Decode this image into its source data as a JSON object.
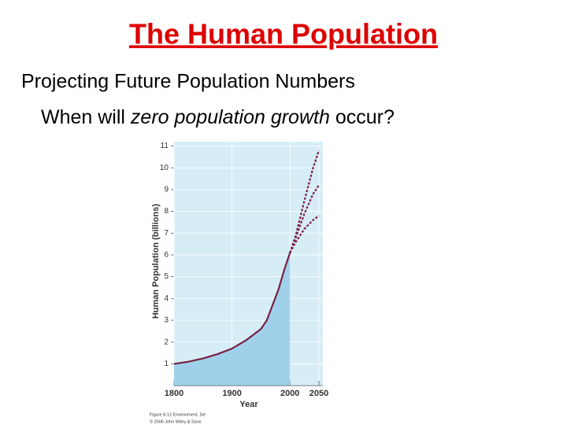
{
  "slide": {
    "title": "The Human Population",
    "subtitle": "Projecting Future Population Numbers",
    "question": [
      "When will ",
      "zero population growth",
      " occur?"
    ]
  },
  "chart_data": {
    "type": "line",
    "ylabel": "Human Population (billions)",
    "xlabel": "Year",
    "caption": [
      "Figure 8-12 Environment, 5/e",
      "© 2006 John Wiley & Sons"
    ],
    "xlim": [
      1800,
      2050
    ],
    "xticks": [
      1800,
      1900,
      2000,
      2050
    ],
    "ylim": [
      0,
      11.2
    ],
    "yticks": [
      1,
      2,
      3,
      4,
      5,
      6,
      7,
      8,
      9,
      10,
      11
    ],
    "grid": true,
    "background": "#d6edf6",
    "fill": "#9fd2ea",
    "series": [
      {
        "color": "#7a1f45",
        "dashed": false,
        "filled": true,
        "x": [
          1800,
          1825,
          1850,
          1875,
          1900,
          1925,
          1950,
          1960,
          1970,
          1980,
          1990,
          2000
        ],
        "values": [
          1.0,
          1.1,
          1.25,
          1.45,
          1.7,
          2.1,
          2.6,
          3.0,
          3.7,
          4.4,
          5.3,
          6.1
        ]
      },
      {
        "color": "#7a1f45",
        "dashed": true,
        "filled": false,
        "x": [
          2000,
          2010,
          2025,
          2040,
          2050
        ],
        "values": [
          6.1,
          6.9,
          8.5,
          10.0,
          10.8
        ]
      },
      {
        "color": "#7a1f45",
        "dashed": true,
        "filled": false,
        "x": [
          2000,
          2010,
          2025,
          2040,
          2050
        ],
        "values": [
          6.1,
          6.8,
          7.9,
          8.8,
          9.2
        ]
      },
      {
        "color": "#7a1f45",
        "dashed": true,
        "filled": false,
        "x": [
          2000,
          2010,
          2025,
          2040,
          2050
        ],
        "values": [
          6.1,
          6.6,
          7.2,
          7.6,
          7.8
        ]
      }
    ]
  }
}
